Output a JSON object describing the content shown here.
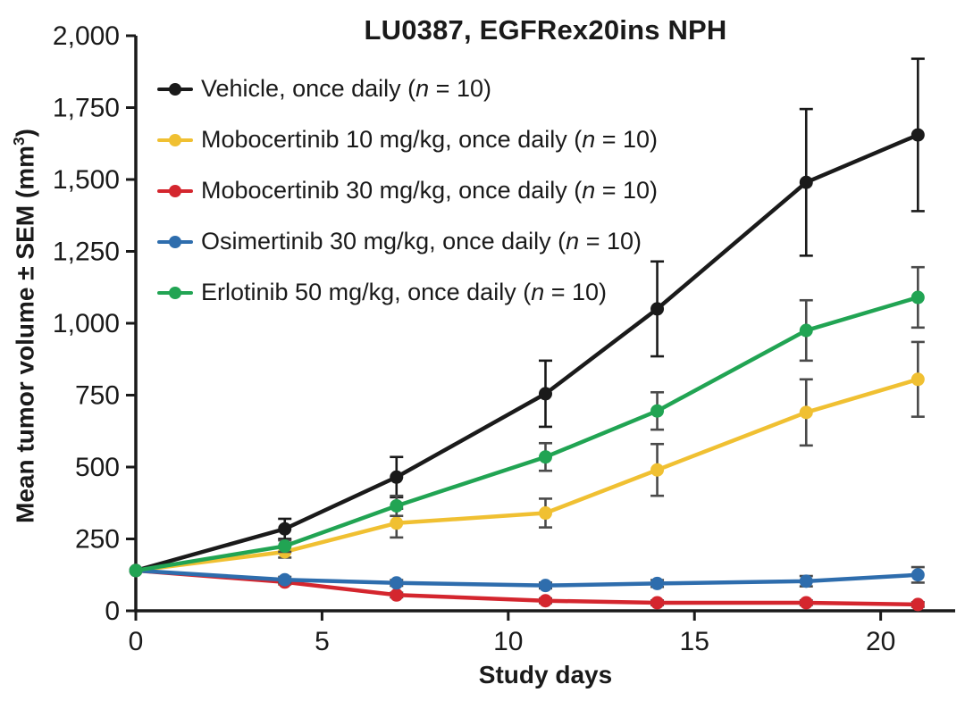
{
  "chart_data": {
    "type": "line",
    "title": "LU0387, EGFRex20ins NPH",
    "xlabel": "Study days",
    "ylabel": "Mean tumor volume ± SEM (mm³)",
    "ylabel_parts": {
      "prefix": "Mean tumor volume ± SEM (mm",
      "superscript": "3",
      "suffix": ")"
    },
    "x": [
      0,
      4,
      7,
      11,
      14,
      18,
      21
    ],
    "xlim": [
      0,
      22
    ],
    "ylim": [
      0,
      2000
    ],
    "x_ticks": [
      0,
      5,
      10,
      15,
      20
    ],
    "x_tick_labels": [
      "0",
      "5",
      "10",
      "15",
      "20"
    ],
    "y_ticks": [
      0,
      250,
      500,
      750,
      1000,
      1250,
      1500,
      1750,
      2000
    ],
    "y_tick_labels": [
      "0",
      "250",
      "500",
      "750",
      "1,000",
      "1,250",
      "1,500",
      "1,750",
      "2,000"
    ],
    "grid": false,
    "legend_position": "top-left-inside",
    "axis_color": "#1a1a1a",
    "series": [
      {
        "name": "Vehicle, once daily (n = 10)",
        "label_parts": {
          "prefix": "Vehicle, once daily (",
          "italic": "n",
          "suffix": " = 10)"
        },
        "color": "#1a1a1a",
        "sem_color": "#1a1a1a",
        "values": [
          140,
          285,
          465,
          755,
          1050,
          1490,
          1655
        ],
        "sem": [
          0,
          35,
          70,
          115,
          165,
          255,
          265
        ]
      },
      {
        "name": "Mobocertinib 10 mg/kg, once daily (n = 10)",
        "label_parts": {
          "prefix": "Mobocertinib 10 mg/kg, once daily (",
          "italic": "n",
          "suffix": " = 10)"
        },
        "color": "#f0c032",
        "sem_color": "#4a4a4a",
        "values": [
          140,
          205,
          305,
          340,
          490,
          690,
          805
        ],
        "sem": [
          0,
          20,
          50,
          50,
          90,
          115,
          130
        ]
      },
      {
        "name": "Mobocertinib 30 mg/kg, once daily (n = 10)",
        "label_parts": {
          "prefix": "Mobocertinib 30 mg/kg, once daily (",
          "italic": "n",
          "suffix": " = 10)"
        },
        "color": "#d4262e",
        "sem_color": "#4a4a4a",
        "values": [
          140,
          100,
          55,
          35,
          28,
          28,
          22
        ],
        "sem": [
          0,
          8,
          8,
          8,
          8,
          8,
          8
        ]
      },
      {
        "name": "Osimertinib 30 mg/kg, once daily (n = 10)",
        "label_parts": {
          "prefix": "Osimertinib 30 mg/kg, once daily (",
          "italic": "n",
          "suffix": " = 10)"
        },
        "color": "#2e6dad",
        "sem_color": "#4a4a4a",
        "values": [
          140,
          108,
          97,
          88,
          95,
          103,
          125
        ],
        "sem": [
          0,
          10,
          10,
          10,
          12,
          18,
          27
        ]
      },
      {
        "name": "Erlotinib 50 mg/kg, once daily (n = 10)",
        "label_parts": {
          "prefix": "Erlotinib 50 mg/kg, once daily (",
          "italic": "n",
          "suffix": " = 10)"
        },
        "color": "#21a453",
        "sem_color": "#4a4a4a",
        "values": [
          140,
          225,
          365,
          535,
          695,
          975,
          1090
        ],
        "sem": [
          0,
          20,
          35,
          48,
          65,
          105,
          105
        ]
      }
    ]
  }
}
